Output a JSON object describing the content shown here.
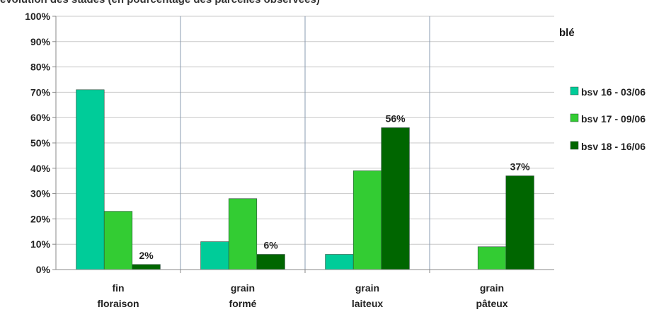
{
  "chart_data": {
    "type": "bar",
    "title": "évolution des stades (en pourcentage des parcelles observées)",
    "legend_title": "blé",
    "categories": [
      [
        "fin",
        "floraison"
      ],
      [
        "grain",
        "formé"
      ],
      [
        "grain",
        "laiteux"
      ],
      [
        "grain",
        "pâteux"
      ]
    ],
    "ylim": [
      0,
      100
    ],
    "yticks": [
      "0%",
      "10%",
      "20%",
      "30%",
      "40%",
      "50%",
      "60%",
      "70%",
      "80%",
      "90%",
      "100%"
    ],
    "grid": true,
    "legend_position": "right",
    "series": [
      {
        "name": "bsv 16 - 03/06",
        "color": "#00CC99",
        "values": [
          71,
          11,
          6,
          0
        ],
        "labels": [
          "",
          "",
          "",
          ""
        ]
      },
      {
        "name": "bsv 17 - 09/06",
        "color": "#33CC33",
        "values": [
          23,
          28,
          39,
          9
        ],
        "labels": [
          "",
          "",
          "",
          ""
        ]
      },
      {
        "name": "bsv 18 - 16/06",
        "color": "#006600",
        "values": [
          2,
          6,
          56,
          37
        ],
        "labels": [
          "2%",
          "6%",
          "56%",
          "37%"
        ]
      }
    ]
  }
}
